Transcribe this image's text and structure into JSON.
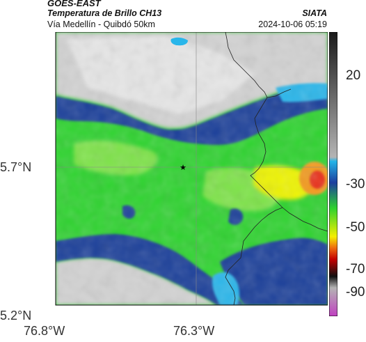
{
  "header": {
    "satellite": "GOES-EAST",
    "product": "Temperatura de Brillo CH13",
    "route": "Vía Medellín - Quibdó 50km",
    "agency": "SIATA",
    "datetime": "2024-10-06 05:19"
  },
  "axes": {
    "y_ticks": [
      "5.7°N",
      "5.2°N"
    ],
    "x_ticks": [
      "76.8°W",
      "76.3°W"
    ]
  },
  "colorbar": {
    "ticks": [
      "20",
      "-30",
      "-50",
      "-70",
      "-90"
    ],
    "colors": {
      "warm_top": "#1a1a1a",
      "gray": "#b4b4b4",
      "cyan": "#22b4e8",
      "blue": "#1d3e9e",
      "green": "#2ed22e",
      "yellow": "#f5ef00",
      "orange": "#ee6a10",
      "red": "#c40000",
      "black": "#101010",
      "magenta": "#c040c0"
    }
  },
  "map": {
    "marker_symbol": "★",
    "colors": {
      "cloud_gray": "#d2d2d2",
      "cloud_gray_light": "#e6e6e6",
      "dark_blue": "#1b3f9a",
      "cyan": "#29b6ea",
      "green": "#2fd330",
      "light_green": "#7ee34a",
      "yellow": "#eef400",
      "hot_red": "#e8321a",
      "hot_orange": "#f39a1a",
      "border": "#222222"
    }
  }
}
